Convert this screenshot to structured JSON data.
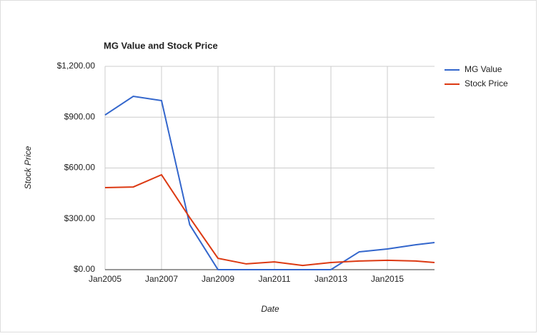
{
  "chart_data": {
    "type": "line",
    "title": "MG Value and Stock Price",
    "x_label": "Date",
    "y_label": "Stock Price",
    "x": [
      2005,
      2006,
      2007,
      2008,
      2009,
      2010,
      2011,
      2012,
      2013,
      2014,
      2015,
      2016,
      2016.67
    ],
    "series": [
      {
        "name": "MG Value",
        "color": "#3366cc",
        "values": [
          913,
          1023,
          998,
          265,
          0,
          0,
          0,
          0,
          0,
          105,
          122,
          147,
          160
        ]
      },
      {
        "name": "Stock Price",
        "color": "#dc3912",
        "values": [
          484,
          488,
          560,
          307,
          67,
          34,
          46,
          25,
          42,
          51,
          55,
          51,
          42
        ]
      }
    ],
    "xlim": [
      2005,
      2016.67
    ],
    "xticks": [
      {
        "value": 2005,
        "label": "Jan2005"
      },
      {
        "value": 2007,
        "label": "Jan2007"
      },
      {
        "value": 2009,
        "label": "Jan2009"
      },
      {
        "value": 2011,
        "label": "Jan2011"
      },
      {
        "value": 2013,
        "label": "Jan2013"
      },
      {
        "value": 2015,
        "label": "Jan2015"
      }
    ],
    "ylim": [
      0,
      1200
    ],
    "yticks": [
      {
        "value": 0,
        "label": "$0.00"
      },
      {
        "value": 300,
        "label": "$300.00"
      },
      {
        "value": 600,
        "label": "$600.00"
      },
      {
        "value": 900,
        "label": "$900.00"
      },
      {
        "value": 1200,
        "label": "$1,200.00"
      }
    ],
    "grid": true,
    "legend": "right"
  }
}
